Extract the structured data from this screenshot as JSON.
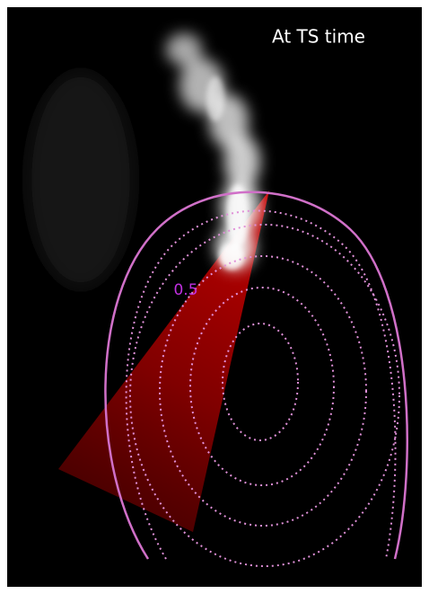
{
  "image": {
    "caption": "At TS time",
    "contour_label": "0.5"
  }
}
